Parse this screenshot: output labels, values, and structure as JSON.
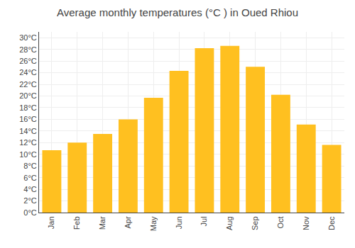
{
  "chart_data": {
    "type": "bar",
    "title": "Average monthly temperatures (°C ) in Oued Rhiou",
    "categories": [
      "Jan",
      "Feb",
      "Mar",
      "Apr",
      "May",
      "Jun",
      "Jul",
      "Aug",
      "Sep",
      "Oct",
      "Nov",
      "Dec"
    ],
    "values": [
      10.7,
      12.0,
      13.5,
      16.0,
      19.7,
      24.3,
      28.2,
      28.6,
      25.0,
      20.2,
      15.1,
      11.6
    ],
    "color": "#FFC020",
    "ylim": [
      0,
      31
    ],
    "yticks": [
      {
        "value": 0,
        "label": "0°C"
      },
      {
        "value": 2,
        "label": "2°C"
      },
      {
        "value": 4,
        "label": "4°C"
      },
      {
        "value": 6,
        "label": "6°C"
      },
      {
        "value": 8,
        "label": "8°C"
      },
      {
        "value": 10,
        "label": "10°C"
      },
      {
        "value": 12,
        "label": "12°C"
      },
      {
        "value": 14,
        "label": "14°C"
      },
      {
        "value": 16,
        "label": "16°C"
      },
      {
        "value": 18,
        "label": "18°C"
      },
      {
        "value": 20,
        "label": "20°C"
      },
      {
        "value": 22,
        "label": "22°C"
      },
      {
        "value": 24,
        "label": "24°C"
      },
      {
        "value": 26,
        "label": "26°C"
      },
      {
        "value": 28,
        "label": "28°C"
      },
      {
        "value": 30,
        "label": "30°C"
      }
    ],
    "grid": true
  }
}
